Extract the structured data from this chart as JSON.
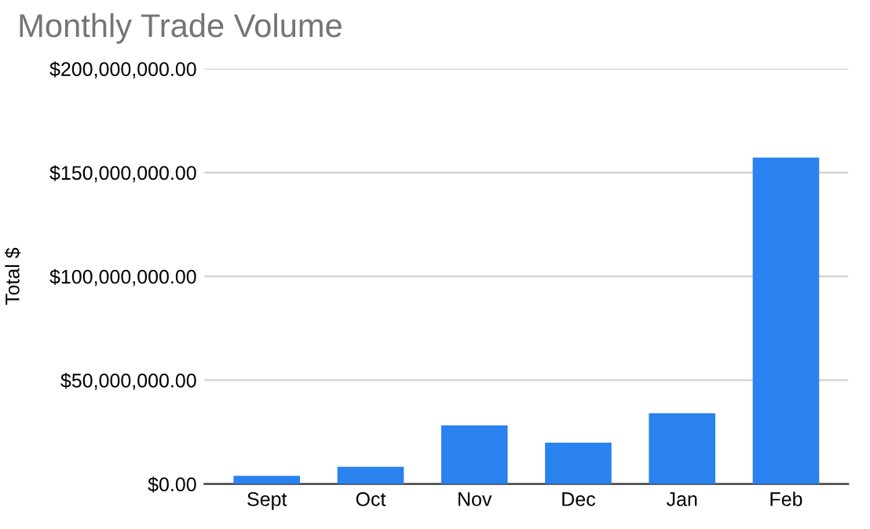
{
  "chart_data": {
    "type": "bar",
    "title": "Monthly Trade Volume",
    "ylabel": "Total $",
    "categories": [
      "Sept",
      "Oct",
      "Nov",
      "Dec",
      "Jan",
      "Feb"
    ],
    "values": [
      4000000,
      8300000,
      28200000,
      19900000,
      34100000,
      157200000
    ],
    "color": "#2a82ee",
    "ylim": [
      0,
      200000000
    ],
    "yticks": [
      {
        "value": 0,
        "label": "$0.00"
      },
      {
        "value": 50000000,
        "label": "$50,000,000.00"
      },
      {
        "value": 100000000,
        "label": "$100,000,000.00"
      },
      {
        "value": 150000000,
        "label": "$150,000,000.00"
      },
      {
        "value": 200000000,
        "label": "$200,000,000.00"
      }
    ],
    "grid": "y"
  }
}
